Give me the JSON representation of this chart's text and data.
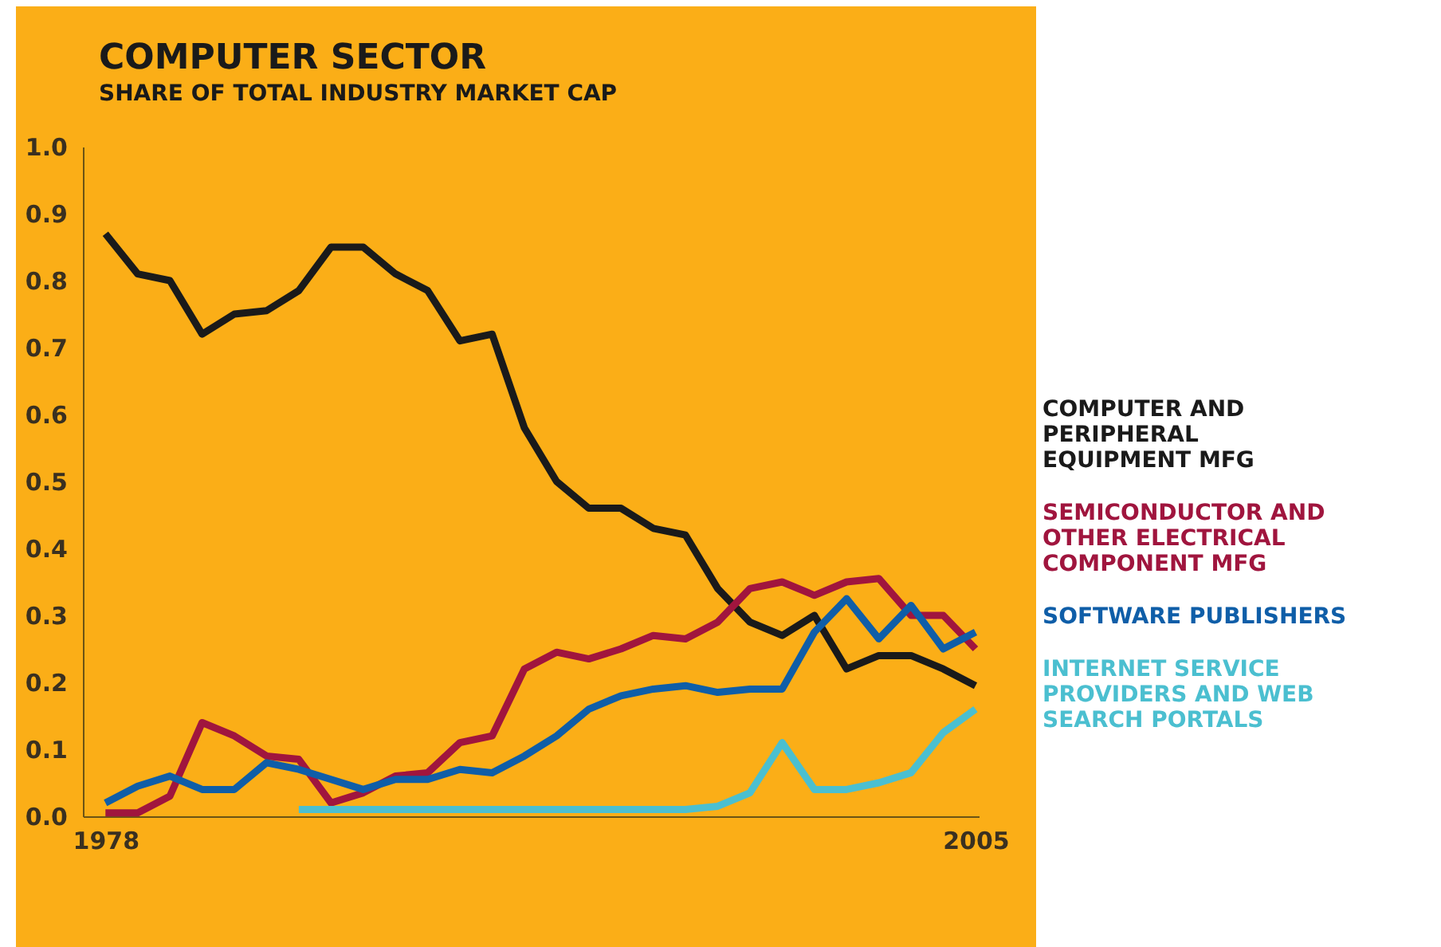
{
  "chart_data": {
    "type": "line",
    "title": "COMPUTER SECTOR",
    "subtitle": "SHARE OF TOTAL INDUSTRY MARKET CAP",
    "x": [
      1978,
      1979,
      1980,
      1981,
      1982,
      1983,
      1984,
      1985,
      1986,
      1987,
      1988,
      1989,
      1990,
      1991,
      1992,
      1993,
      1994,
      1995,
      1996,
      1997,
      1998,
      1999,
      2000,
      2001,
      2002,
      2003,
      2004,
      2005
    ],
    "xlim": [
      1977.3,
      2005.1
    ],
    "xticks": [
      1978,
      2005
    ],
    "ylim": [
      0,
      1
    ],
    "yticks": [
      {
        "value": 0,
        "label": "0.0"
      },
      0.1,
      0.2,
      0.3,
      0.4,
      0.5,
      0.6,
      0.7,
      0.8,
      0.9,
      {
        "value": 1,
        "label": "1.0"
      }
    ],
    "series": [
      {
        "name": "COMPUTER AND PERIPHERAL EQUIPMENT MFG",
        "color": "#1a1a1a",
        "values": [
          0.87,
          0.81,
          0.8,
          0.72,
          0.75,
          0.755,
          0.785,
          0.85,
          0.85,
          0.81,
          0.785,
          0.71,
          0.72,
          0.58,
          0.5,
          0.46,
          0.46,
          0.43,
          0.42,
          0.34,
          0.29,
          0.27,
          0.3,
          0.22,
          0.24,
          0.24,
          0.22,
          0.195
        ]
      },
      {
        "name": "SEMICONDUCTOR AND OTHER ELECTRICAL COMPONENT MFG",
        "color": "#a0153e",
        "values": [
          0.005,
          0.005,
          0.03,
          0.14,
          0.12,
          0.09,
          0.085,
          0.02,
          0.035,
          0.06,
          0.065,
          0.11,
          0.12,
          0.22,
          0.245,
          0.235,
          0.25,
          0.27,
          0.265,
          0.29,
          0.34,
          0.35,
          0.33,
          0.35,
          0.355,
          0.3,
          0.3,
          0.25
        ]
      },
      {
        "name": "SOFTWARE PUBLISHERS",
        "color": "#0f5ea8",
        "values": [
          0.02,
          0.045,
          0.06,
          0.04,
          0.04,
          0.08,
          0.07,
          0.055,
          0.04,
          0.055,
          0.055,
          0.07,
          0.065,
          0.09,
          0.12,
          0.16,
          0.18,
          0.19,
          0.195,
          0.185,
          0.19,
          0.19,
          0.275,
          0.325,
          0.265,
          0.315,
          0.25,
          0.275
        ]
      },
      {
        "name": "INTERNET SERVICE PROVIDERS AND WEB SEARCH PORTALS",
        "color": "#4bbfd0",
        "values": [
          null,
          null,
          null,
          null,
          null,
          null,
          0.01,
          0.01,
          0.01,
          0.01,
          0.01,
          0.01,
          0.01,
          0.01,
          0.01,
          0.01,
          0.01,
          0.01,
          0.01,
          0.015,
          0.035,
          0.11,
          0.04,
          0.04,
          0.05,
          0.065,
          0.125,
          0.16
        ]
      }
    ],
    "legend": "right"
  }
}
